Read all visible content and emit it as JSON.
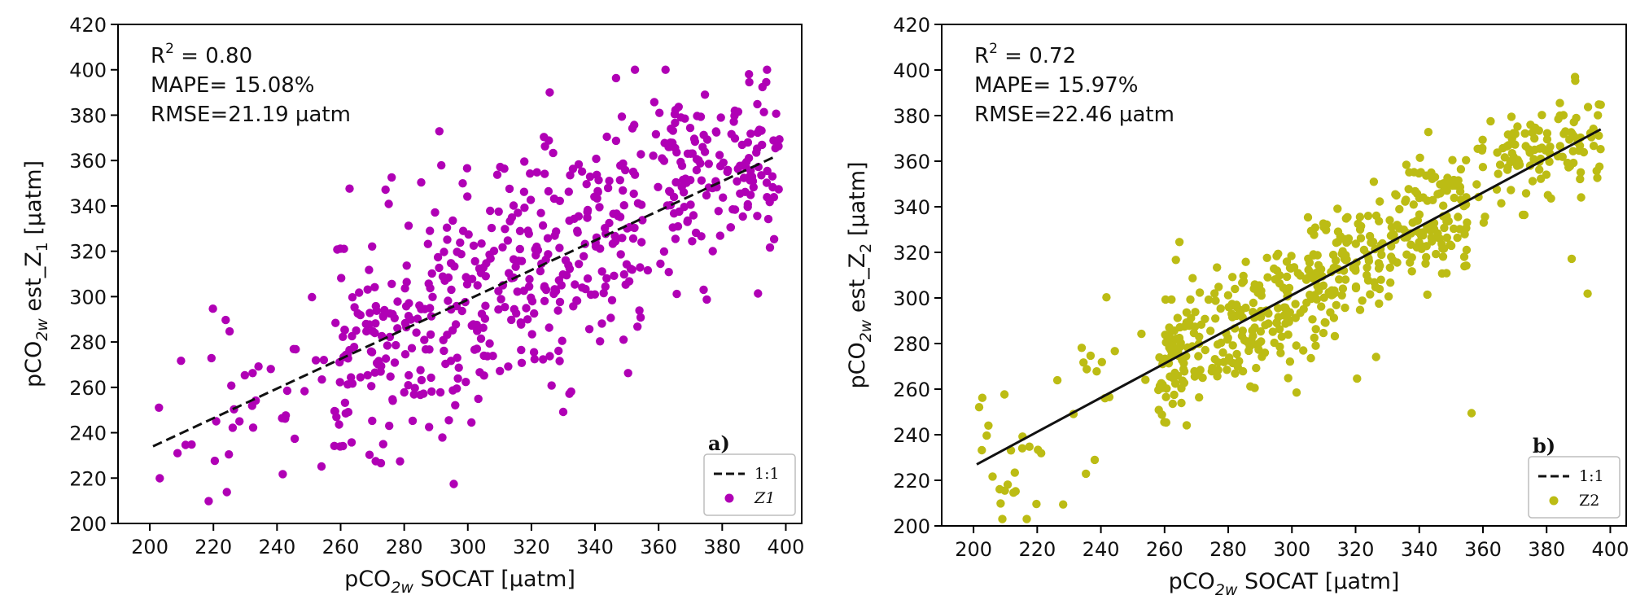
{
  "chart_data": [
    {
      "id": "a",
      "type": "scatter",
      "panel_tag": "a)",
      "xlabel": {
        "prefix": "pCO",
        "sub": "2w",
        "suffix": " SOCAT [µatm]"
      },
      "ylabel": {
        "prefix": "pCO",
        "sub": "2w",
        "mid": " est_Z",
        "sub2": "1",
        "suffix": " [µatm]"
      },
      "xlim": [
        190,
        405
      ],
      "ylim": [
        200,
        420
      ],
      "xticks": [
        200,
        220,
        240,
        260,
        280,
        300,
        320,
        340,
        360,
        380,
        400
      ],
      "yticks": [
        200,
        220,
        240,
        260,
        280,
        300,
        320,
        340,
        360,
        380,
        400,
        420
      ],
      "stats": {
        "r2_prefix": "R",
        "r2_sup": "2",
        "r2_value": " = 0.80",
        "mape": "MAPE= 15.08%",
        "rmse": "RMSE=21.19 µatm"
      },
      "legend": {
        "line_label": "1:1",
        "points_label": "Z1",
        "position": "bottom-right"
      },
      "point_color": "#b000b5",
      "line": {
        "style": "dashed",
        "x": [
          201,
          397
        ],
        "y": [
          234,
          362
        ]
      },
      "point_count": 620,
      "seed": 7,
      "clusters": [
        {
          "n": 40,
          "x": [
            200,
            255
          ],
          "center_fn": [
            234,
            0.65,
            201
          ],
          "sd": 22
        },
        {
          "n": 420,
          "x": [
            258,
            355
          ],
          "center_fn": [
            234,
            0.65,
            201
          ],
          "sd": 26
        },
        {
          "n": 120,
          "x": [
            360,
            398
          ],
          "center_fn": [
            362,
            0.15,
            380
          ],
          "sd": 16
        },
        {
          "n": 40,
          "x": [
            355,
            398
          ],
          "center_fn": [
            350,
            0.0,
            380
          ],
          "sd": 35
        }
      ]
    },
    {
      "id": "b",
      "type": "scatter",
      "panel_tag": "b)",
      "xlabel": {
        "prefix": "pCO",
        "sub": "2w",
        "suffix": " SOCAT [µatm]"
      },
      "ylabel": {
        "prefix": "pCO",
        "sub": "2w",
        "mid": " est_Z",
        "sub2": "2",
        "suffix": " [µatm]"
      },
      "xlim": [
        190,
        405
      ],
      "ylim": [
        200,
        420
      ],
      "xticks": [
        200,
        220,
        240,
        260,
        280,
        300,
        320,
        340,
        360,
        380,
        400
      ],
      "yticks": [
        200,
        220,
        240,
        260,
        280,
        300,
        320,
        340,
        360,
        380,
        400,
        420
      ],
      "stats": {
        "r2_prefix": "R",
        "r2_sup": "2",
        "r2_value": " = 0.72",
        "mape": "MAPE= 15.97%",
        "rmse": "RMSE=22.46 µatm"
      },
      "legend": {
        "line_label": "1:1",
        "points_label": "Z2",
        "position": "bottom-right"
      },
      "point_color": "#bcbc14",
      "line": {
        "style": "solid",
        "x": [
          201,
          397
        ],
        "y": [
          227,
          374
        ]
      },
      "point_count": 640,
      "seed": 11,
      "clusters": [
        {
          "n": 40,
          "x": [
            200,
            255
          ],
          "center_fn": [
            227,
            0.75,
            201
          ],
          "sd": 22
        },
        {
          "n": 470,
          "x": [
            258,
            355
          ],
          "center_fn": [
            227,
            0.75,
            201
          ],
          "sd": 14
        },
        {
          "n": 110,
          "x": [
            358,
            398
          ],
          "center_fn": [
            362,
            0.4,
            370
          ],
          "sd": 12
        },
        {
          "n": 20,
          "x": [
            300,
            398
          ],
          "center_fn": [
            300,
            0.3,
            300
          ],
          "sd": 35
        }
      ]
    }
  ]
}
